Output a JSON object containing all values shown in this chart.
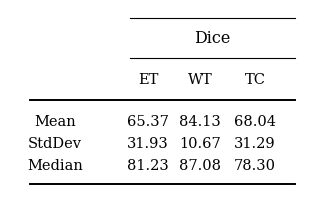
{
  "title": "Dice",
  "col_headers": [
    "ET",
    "WT",
    "TC"
  ],
  "row_headers": [
    "Mean",
    "StdDev",
    "Median"
  ],
  "data": [
    [
      "65.37",
      "84.13",
      "68.04"
    ],
    [
      "31.93",
      "10.67",
      "31.29"
    ],
    [
      "81.23",
      "87.08",
      "78.30"
    ]
  ],
  "background_color": "#ffffff",
  "text_color": "#000000",
  "fontsize": 10.5
}
